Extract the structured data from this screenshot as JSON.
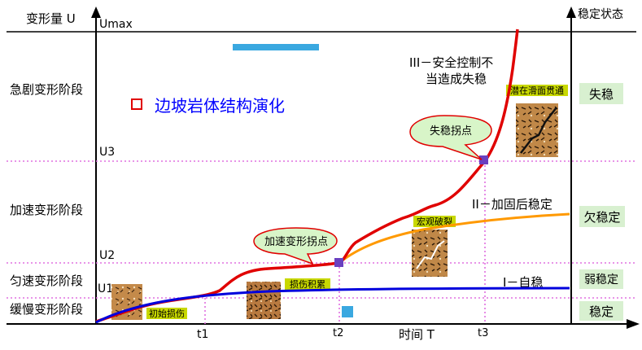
{
  "axes": {
    "y_label": "变形量 U",
    "x_label": "时间 T",
    "state_header": "稳定状态",
    "umax": "Umax",
    "u3": "U3",
    "u2": "U2",
    "u1": "U1",
    "t1": "t1",
    "t2": "t2",
    "t3": "t3"
  },
  "stages": {
    "rapid": "急剧变形阶段",
    "accelerated": "加速变形阶段",
    "uniform": "匀速变形阶段",
    "slow": "缓慢变形阶段"
  },
  "states": {
    "unstable": "失稳",
    "under_stable": "欠稳定",
    "weak_stable": "弱稳定",
    "stable": "稳定"
  },
  "legend": {
    "label": "边坡岩体结构演化"
  },
  "curves": {
    "curve_iii_line1": "III－安全控制不",
    "curve_iii_line2": "当造成失稳",
    "curve_ii": "II－加固后稳定",
    "curve_i": "I－自稳"
  },
  "callouts": {
    "accel_point": "加速变形拐点",
    "failure_point": "失稳拐点"
  },
  "rock_labels": {
    "initial_damage": "初始损伤",
    "damage_accumulation": "损伤积累",
    "macro_fracture": "宏观破裂",
    "sliding_surface": "潜在滑面贯通"
  },
  "colors": {
    "curve_iii": "#e00000",
    "curve_ii": "#ff9900",
    "curve_i": "#0000dd",
    "state_box": "#d8f0d0",
    "label_tag": "#c8d800",
    "grid_line": "#e070e0",
    "callout_fill": "#d8f5c8",
    "legend_text": "#0000ff",
    "marker": "#6a40c0",
    "cyan_bar": "#3aa8e0"
  }
}
